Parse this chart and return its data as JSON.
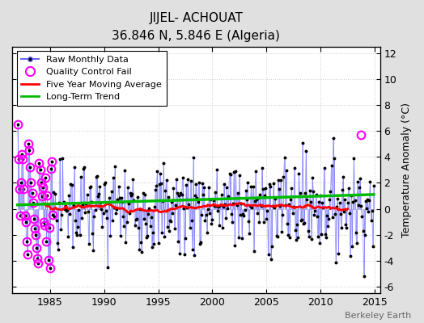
{
  "title": "JIJEL- ACHOUAT",
  "subtitle": "36.846 N, 5.846 E (Algeria)",
  "ylabel": "Temperature Anomaly (°C)",
  "watermark": "Berkeley Earth",
  "xlim": [
    1981.5,
    2015.5
  ],
  "ylim": [
    -6.5,
    12.5
  ],
  "yticks": [
    -6,
    -4,
    -2,
    0,
    2,
    4,
    6,
    8,
    10,
    12
  ],
  "bg_color": "#e0e0e0",
  "plot_bg_color": "#ffffff",
  "grid_color": "#cccccc",
  "raw_line_color": "#6666ff",
  "raw_dot_color": "#000000",
  "ma_color": "#ff0000",
  "trend_color": "#00bb00",
  "qc_color": "#ff00ff",
  "start_year": 1982,
  "end_year": 2014
}
